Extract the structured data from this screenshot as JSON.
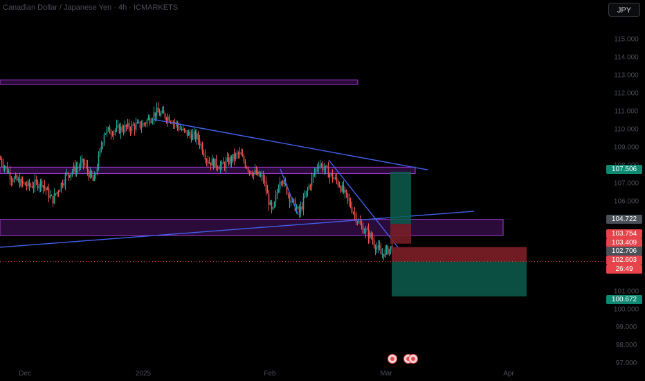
{
  "header": {
    "title": "Canadian Dollar / Japanese Yen · 4h · ICMARKETS",
    "unit_button": "JPY"
  },
  "colors": {
    "up": "#26a69a",
    "down": "#ef5350",
    "zone_fill": "#7b1fa2",
    "zone_border": "#a33dd8",
    "trendline": "#4262f0",
    "target_zone": "#0d5c4e",
    "stop_zone": "#7d1f27"
  },
  "chart_data": {
    "type": "candlestick",
    "symbol": "Canadian Dollar / Japanese Yen",
    "timeframe": "4h",
    "exchange": "ICMARKETS",
    "y_axis": {
      "range": [
        97.2,
        115.6
      ],
      "ticks": [
        "115.000",
        "114.000",
        "113.000",
        "112.000",
        "111.000",
        "110.000",
        "109.000",
        "108.000",
        "107.000",
        "106.000",
        "105.000",
        "104.000",
        "103.000",
        "101.000",
        "100.000",
        "99.000",
        "98.000",
        "97.000"
      ]
    },
    "x_axis": {
      "ticks": [
        "Dec",
        "2025",
        "Feb",
        "Mar",
        "Apr"
      ]
    },
    "price_badges": [
      {
        "label": "107.506",
        "color": "#0e8a72"
      },
      {
        "label": "104.722",
        "color": "#4b4f58"
      },
      {
        "label": "103.754",
        "color": "#e8424a"
      },
      {
        "label": "103.409",
        "color": "#e8424a"
      },
      {
        "label": "102.706",
        "color": "#4b4f58"
      },
      {
        "label": "102.603",
        "color": "#e8424a"
      },
      {
        "label": "26:49",
        "color": "#e8424a"
      },
      {
        "label": "100.672",
        "color": "#0e8a72"
      }
    ],
    "current_price": 102.603,
    "zones": [
      {
        "name": "resistance-top",
        "from": 112.45,
        "to": 112.7
      },
      {
        "name": "resistance-mid",
        "from": 107.5,
        "to": 107.85
      },
      {
        "name": "support-zone",
        "from": 104.05,
        "to": 104.95
      }
    ],
    "trade": {
      "entry": 102.603,
      "stop": 103.409,
      "target": 100.672
    }
  }
}
